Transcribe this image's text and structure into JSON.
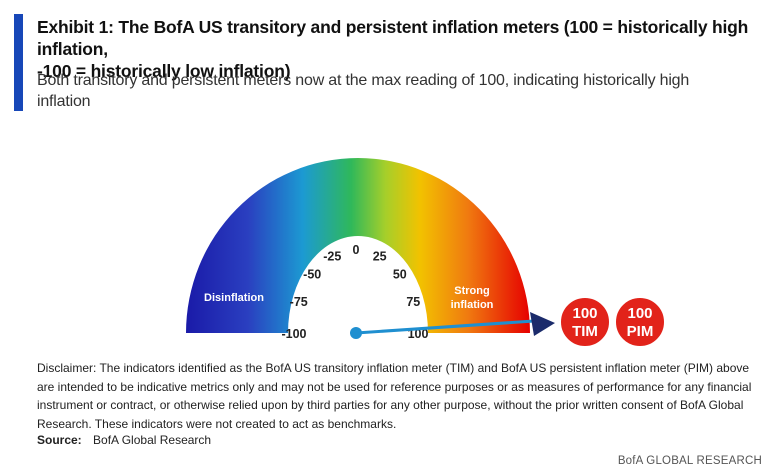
{
  "header": {
    "title_line1": "Exhibit 1:  The BofA US transitory and persistent inflation meters (100 = historically high inflation,",
    "title_line2": "-100 = historically low inflation)",
    "subtitle_line1": "Both transitory and persistent meters now at the max reading of 100, indicating historically high",
    "subtitle_line2": "inflation"
  },
  "colors": {
    "accent": "#1747b8",
    "gauge_low": "#1a1aa8",
    "gauge_mid": "#f2c200",
    "gauge_high": "#e60000",
    "needle": "#1f8fd0",
    "arrow_head": "#1b2b6b",
    "badge": "#e2231a"
  },
  "chart_data": {
    "type": "gauge",
    "range": [
      -100,
      100
    ],
    "ticks": [
      "-100",
      "-75",
      "-50",
      "-25",
      "0",
      "25",
      "50",
      "75",
      "100"
    ],
    "band_labels": {
      "low": "Disinflation",
      "high_line1": "Strong",
      "high_line2": "inflation"
    },
    "readings": [
      {
        "value": "100",
        "label": "TIM"
      },
      {
        "value": "100",
        "label": "PIM"
      }
    ],
    "needle_value": 100
  },
  "disclaimer": {
    "line1": "Disclaimer: The indicators identified as the BofA US transitory inflation meter (TIM) and BofA US persistent  inflation meter (PIM) above",
    "line2": "are intended to be indicative metrics only and may not be used  for reference purposes or as measures of performance for any financial",
    "line3": "instrument or contract, or otherwise relied upon by third parties for any other purpose,  without the prior written consent  of BofA Global",
    "line4": "Research.  These indicators  were not created to act as benchmarks."
  },
  "source": {
    "label": "Source:",
    "text": "BofA Global Research"
  },
  "footer": {
    "brand": "BofA GLOBAL RESEARCH"
  }
}
